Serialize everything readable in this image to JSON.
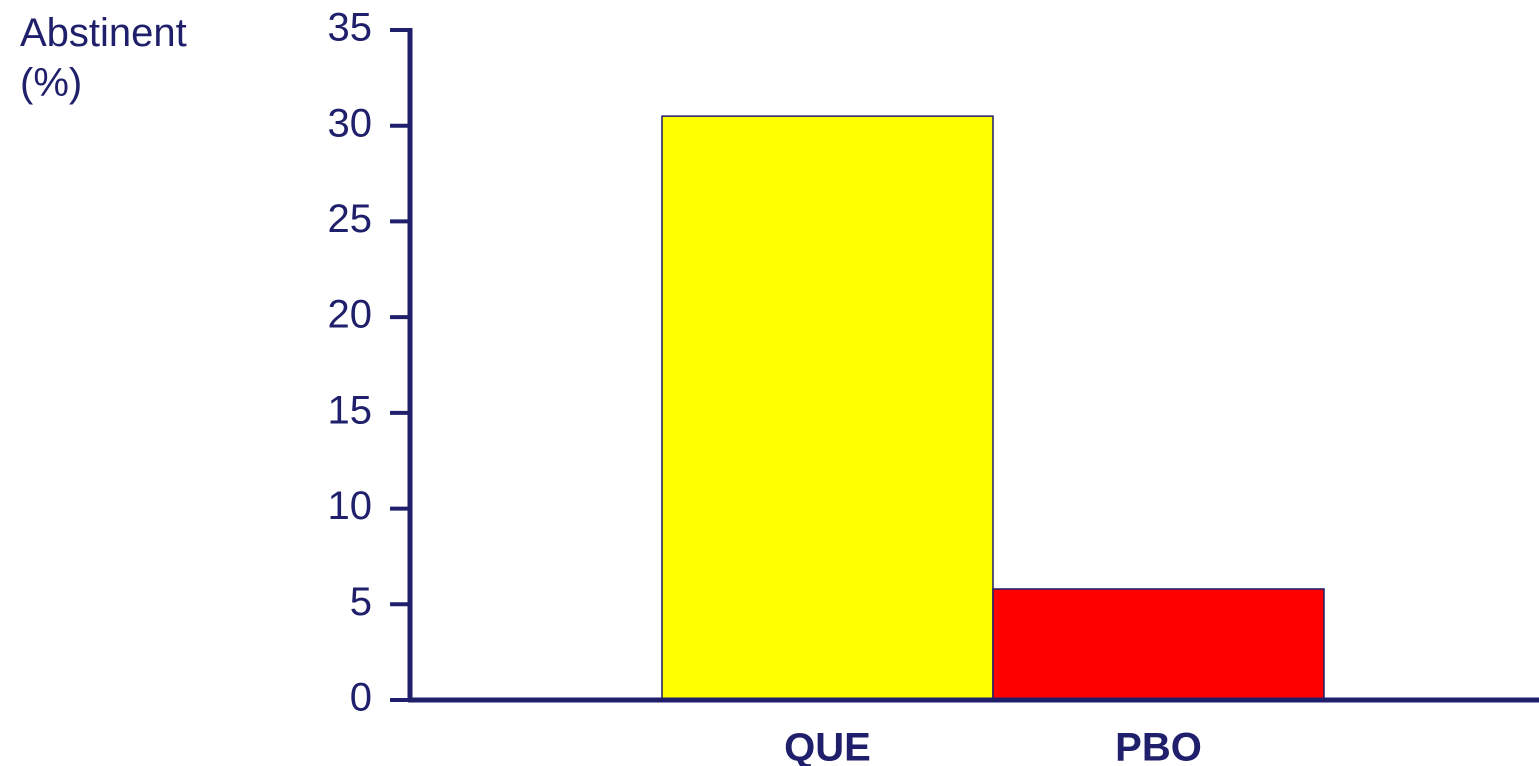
{
  "chart_data": {
    "type": "bar",
    "y_label": "Abstinent (%)",
    "categories": [
      "QUE",
      "PBO"
    ],
    "values": [
      30.5,
      5.8
    ],
    "colors": [
      "#ffff00",
      "#ff0000"
    ],
    "ylim": [
      0,
      35
    ],
    "yticks": [
      0,
      5,
      10,
      15,
      20,
      25,
      30,
      35
    ],
    "grid": false
  }
}
